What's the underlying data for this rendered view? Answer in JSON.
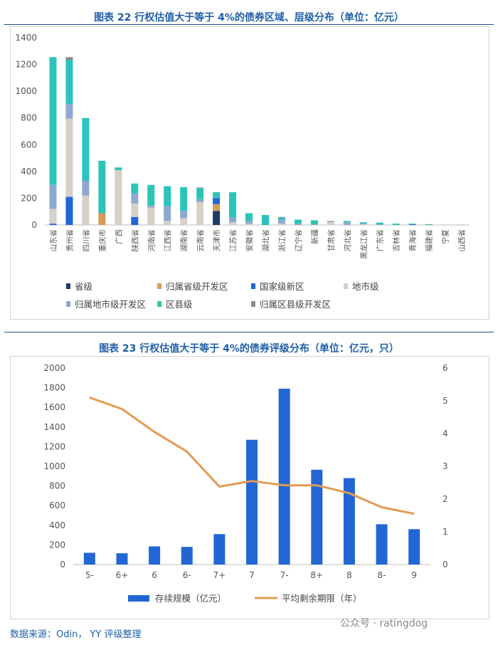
{
  "chart1": {
    "title": "图表 22 行权估值大于等于 4%的债券区域、层级分布（单位：亿元）",
    "ylim": [
      0,
      1400
    ],
    "yticks": [
      0,
      200,
      400,
      600,
      800,
      1000,
      1200,
      1400
    ]
  },
  "chart2": {
    "title": "图表 23 行权估值大于等于 4%的债券评级分布（单位：亿元，只）",
    "ylim_left": [
      0,
      2000
    ],
    "yticks_left": [
      0,
      200,
      400,
      600,
      800,
      1000,
      1200,
      1400,
      1600,
      1800,
      2000
    ],
    "ylim_right": [
      0,
      6
    ],
    "yticks_right": [
      0,
      1,
      2,
      3,
      4,
      5,
      6
    ]
  },
  "footer": {
    "source": "数据来源：Odin， YY 评级整理"
  },
  "watermark": {
    "text": "公众号 · ratingdog"
  },
  "colors": {
    "prov": "#1f3b64",
    "prov_dev": "#d99a55",
    "nat_new": "#2266d6",
    "city": "#d6d0c7",
    "city_dev": "#8fa8d0",
    "county": "#2cc4b8",
    "county_dev": "#8c8c8c",
    "bar2": "#2266d6",
    "line2": "#e29b52"
  },
  "chart_data": [
    {
      "type": "bar",
      "stacked": true,
      "categories": [
        "山东省",
        "贵州省",
        "四川省",
        "重庆市",
        "广西",
        "陕西省",
        "河南省",
        "江西省",
        "湖南省",
        "云南省",
        "天津市",
        "江苏省",
        "安徽省",
        "湖北省",
        "浙江省",
        "辽宁省",
        "新疆",
        "甘肃省",
        "河北省",
        "黑龙江省",
        "广东省",
        "吉林省",
        "青海省",
        "福建省",
        "宁夏",
        "山西省"
      ],
      "series": [
        {
          "name": "省级",
          "color_key": "prov",
          "values": [
            0,
            0,
            0,
            0,
            0,
            0,
            0,
            0,
            0,
            0,
            105,
            0,
            0,
            0,
            0,
            0,
            0,
            0,
            0,
            0,
            0,
            0,
            0,
            0,
            0,
            0
          ]
        },
        {
          "name": "归属省级开发区",
          "color_key": "prov_dev",
          "values": [
            0,
            0,
            0,
            88,
            0,
            0,
            0,
            0,
            0,
            0,
            50,
            0,
            0,
            0,
            0,
            0,
            0,
            0,
            0,
            0,
            0,
            0,
            0,
            0,
            0,
            0
          ]
        },
        {
          "name": "国家级新区",
          "color_key": "nat_new",
          "values": [
            10,
            210,
            0,
            0,
            0,
            60,
            0,
            0,
            0,
            0,
            45,
            0,
            0,
            0,
            0,
            0,
            0,
            0,
            0,
            0,
            0,
            0,
            5,
            0,
            0,
            0
          ]
        },
        {
          "name": "地市级",
          "color_key": "city",
          "values": [
            110,
            585,
            220,
            0,
            410,
            100,
            130,
            30,
            50,
            170,
            0,
            20,
            10,
            0,
            10,
            0,
            0,
            20,
            0,
            5,
            0,
            0,
            0,
            0,
            5,
            5
          ]
        },
        {
          "name": "归属地市级开发区",
          "color_key": "city_dev",
          "values": [
            180,
            110,
            110,
            0,
            0,
            75,
            15,
            110,
            55,
            20,
            0,
            35,
            20,
            0,
            30,
            10,
            5,
            10,
            20,
            5,
            5,
            0,
            0,
            0,
            0,
            0
          ]
        },
        {
          "name": "区县级",
          "color_key": "county",
          "values": [
            955,
            330,
            470,
            392,
            20,
            75,
            155,
            150,
            178,
            85,
            45,
            190,
            58,
            75,
            15,
            30,
            30,
            0,
            10,
            10,
            13,
            10,
            5,
            6,
            0,
            0
          ]
        },
        {
          "name": "归属区县级开发区",
          "color_key": "county_dev",
          "values": [
            0,
            20,
            0,
            0,
            0,
            0,
            0,
            0,
            0,
            5,
            0,
            0,
            0,
            0,
            5,
            0,
            0,
            0,
            0,
            0,
            0,
            0,
            0,
            0,
            0,
            0
          ]
        }
      ],
      "ylim": [
        0,
        1400
      ]
    },
    {
      "type": "bar+line",
      "categories": [
        "5-",
        "6+",
        "6",
        "6-",
        "7+",
        "7",
        "7-",
        "8+",
        "8",
        "8-",
        "9"
      ],
      "series": [
        {
          "name": "存续规模（亿元）",
          "type": "bar",
          "axis": "left",
          "values": [
            120,
            115,
            185,
            180,
            310,
            1270,
            1790,
            965,
            880,
            410,
            360
          ]
        },
        {
          "name": "平均剩余期限（年）",
          "type": "line",
          "axis": "right",
          "values": [
            5.1,
            4.75,
            4.05,
            3.45,
            2.38,
            2.55,
            2.42,
            2.42,
            2.18,
            1.75,
            1.55
          ]
        }
      ],
      "ylim_left": [
        0,
        2000
      ],
      "ylim_right": [
        0,
        6
      ]
    }
  ]
}
